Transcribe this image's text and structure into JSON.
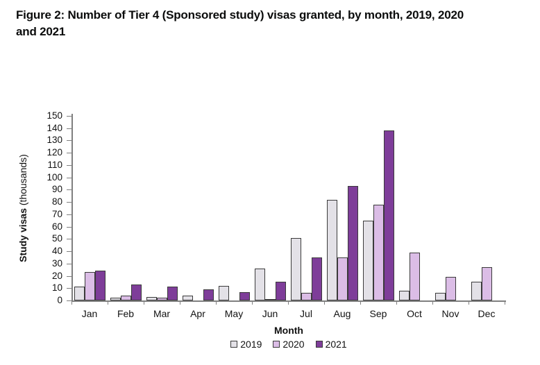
{
  "title": "Figure 2: Number of Tier 4 (Sponsored study) visas granted, by month, 2019, 2020 and 2021",
  "title_lines": [
    "Figure 2: Number of Tier 4 (Sponsored study) visas granted, by month, 2019, 2020",
    "and 2021"
  ],
  "chart_data": {
    "type": "bar",
    "title": "Figure 2: Number of Tier 4 (Sponsored study) visas granted, by month, 2019, 2020 and 2021",
    "categories": [
      "Jan",
      "Feb",
      "Mar",
      "Apr",
      "May",
      "Jun",
      "Jul",
      "Aug",
      "Sep",
      "Oct",
      "Nov",
      "Dec"
    ],
    "series": [
      {
        "name": "2019",
        "color": "#e3e1e7",
        "values": [
          11,
          2,
          3,
          4,
          12,
          26,
          51,
          82,
          65,
          8,
          6,
          15
        ]
      },
      {
        "name": "2020",
        "color": "#dbbde6",
        "values": [
          23,
          4,
          2,
          0,
          0,
          1,
          6,
          35,
          78,
          39,
          19,
          27
        ]
      },
      {
        "name": "2021",
        "color": "#7e3d99",
        "values": [
          24,
          13,
          11,
          9,
          7,
          15,
          35,
          93,
          138,
          null,
          null,
          null
        ]
      }
    ],
    "xlabel": "Month",
    "ylabel": "Study visas (thousands)",
    "ylabel_bold": "Study visas",
    "ylabel_normal": "(thousands)",
    "ylim": [
      0,
      150
    ],
    "ytick_step": 10,
    "grid": false,
    "legend_position": "bottom"
  }
}
